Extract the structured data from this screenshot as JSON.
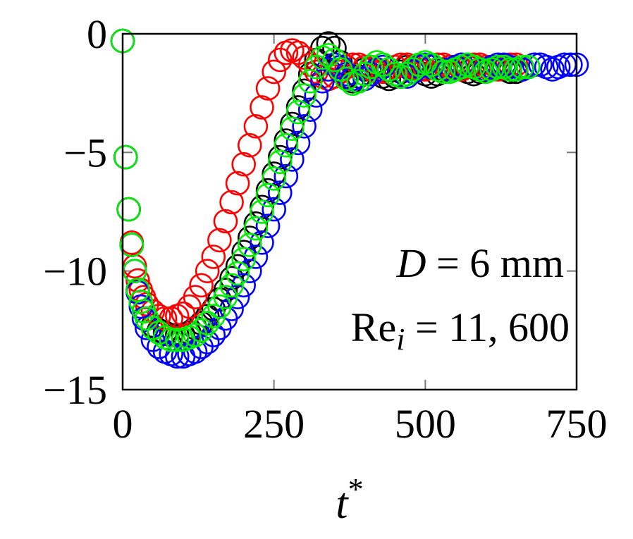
{
  "chart_data": {
    "type": "scatter",
    "title": "",
    "xlabel": "t*",
    "ylabel": "",
    "xlim": [
      0,
      750
    ],
    "ylim": [
      -15,
      0
    ],
    "xticks": [
      0,
      250,
      500,
      750
    ],
    "yticks": [
      0,
      -5,
      -10,
      -15
    ],
    "xtick_labels": [
      "0",
      "250",
      "500",
      "750"
    ],
    "ytick_labels": [
      "0",
      "−5",
      "−10",
      "−15"
    ],
    "grid": false,
    "marker": "open-circle",
    "annotation": {
      "line1": "D = 6 mm",
      "line2": "Re_i = 11, 600"
    },
    "series": [
      {
        "color": "#000000",
        "x": [
          0,
          5,
          10,
          15,
          20,
          25,
          30,
          35,
          40,
          50,
          60,
          70,
          80,
          90,
          100,
          110,
          120,
          130,
          140,
          150,
          160,
          170,
          180,
          190,
          200,
          210,
          220,
          230,
          240,
          250,
          260,
          270,
          280,
          290,
          300,
          310,
          320,
          330,
          340,
          350,
          360,
          370,
          380,
          390,
          400,
          410,
          420,
          430,
          440,
          450,
          460,
          470,
          480,
          490,
          500,
          510,
          520,
          530,
          540,
          550,
          560,
          570,
          580,
          590,
          600,
          610,
          620,
          630,
          640,
          650,
          660
        ],
        "y": [
          -0.3,
          -5.2,
          -7.4,
          -8.9,
          -10.0,
          -10.8,
          -11.3,
          -11.7,
          -12.0,
          -12.3,
          -12.5,
          -12.6,
          -12.7,
          -12.7,
          -12.7,
          -12.6,
          -12.4,
          -12.2,
          -11.9,
          -11.6,
          -11.2,
          -10.8,
          -10.3,
          -9.8,
          -9.2,
          -8.6,
          -8.0,
          -7.3,
          -6.6,
          -5.9,
          -5.2,
          -4.5,
          -3.8,
          -3.1,
          -2.4,
          -1.7,
          -1.1,
          -0.6,
          -0.4,
          -0.6,
          -1.2,
          -1.8,
          -2.0,
          -1.8,
          -1.5,
          -1.4,
          -1.6,
          -1.8,
          -1.9,
          -1.8,
          -1.6,
          -1.4,
          -1.4,
          -1.5,
          -1.7,
          -1.8,
          -1.7,
          -1.5,
          -1.4,
          -1.4,
          -1.5,
          -1.6,
          -1.7,
          -1.6,
          -1.5,
          -1.4,
          -1.4,
          -1.5,
          -1.6,
          -1.6,
          -1.5
        ]
      },
      {
        "color": "#ff0000",
        "x": [
          0,
          5,
          10,
          15,
          20,
          25,
          30,
          35,
          40,
          50,
          60,
          70,
          80,
          90,
          100,
          110,
          120,
          130,
          140,
          150,
          160,
          170,
          180,
          190,
          200,
          210,
          220,
          230,
          240,
          250,
          260,
          270,
          280,
          290,
          300,
          310,
          320,
          330,
          340,
          350,
          360,
          370,
          380,
          390,
          400,
          410,
          420,
          430,
          440,
          450,
          460,
          470,
          480,
          490,
          500,
          510,
          520,
          530,
          540,
          550,
          560,
          570,
          580,
          590,
          600,
          610,
          620,
          630,
          640,
          650
        ],
        "y": [
          -0.3,
          -5.2,
          -7.4,
          -8.8,
          -9.8,
          -10.4,
          -10.8,
          -11.1,
          -11.4,
          -11.7,
          -11.9,
          -12.0,
          -12.0,
          -11.9,
          -11.8,
          -11.5,
          -11.1,
          -10.6,
          -10.0,
          -9.4,
          -8.7,
          -7.9,
          -7.1,
          -6.3,
          -5.5,
          -4.7,
          -3.9,
          -3.1,
          -2.3,
          -1.6,
          -1.1,
          -0.8,
          -0.7,
          -0.8,
          -1.0,
          -1.3,
          -1.6,
          -1.8,
          -1.9,
          -1.8,
          -1.6,
          -1.4,
          -1.3,
          -1.3,
          -1.4,
          -1.5,
          -1.6,
          -1.6,
          -1.5,
          -1.4,
          -1.3,
          -1.3,
          -1.4,
          -1.5,
          -1.5,
          -1.4,
          -1.3,
          -1.3,
          -1.4,
          -1.5,
          -1.5,
          -1.4,
          -1.3,
          -1.3,
          -1.4,
          -1.5,
          -1.5,
          -1.4,
          -1.3,
          -1.3
        ]
      },
      {
        "color": "#0000ff",
        "x": [
          0,
          5,
          10,
          15,
          20,
          25,
          30,
          35,
          40,
          50,
          60,
          70,
          80,
          90,
          100,
          110,
          120,
          130,
          140,
          150,
          160,
          170,
          180,
          190,
          200,
          210,
          220,
          230,
          240,
          250,
          260,
          270,
          280,
          290,
          300,
          310,
          320,
          330,
          340,
          350,
          360,
          370,
          380,
          390,
          400,
          410,
          420,
          430,
          440,
          450,
          460,
          470,
          480,
          490,
          500,
          510,
          520,
          530,
          540,
          550,
          560,
          570,
          580,
          590,
          600,
          610,
          620,
          630,
          640,
          650,
          660,
          670,
          680,
          690,
          700,
          710,
          720,
          730,
          740,
          750
        ],
        "y": [
          -0.3,
          -5.2,
          -7.4,
          -8.9,
          -10.0,
          -10.9,
          -11.5,
          -12.0,
          -12.4,
          -12.9,
          -13.2,
          -13.4,
          -13.5,
          -13.6,
          -13.6,
          -13.5,
          -13.4,
          -13.2,
          -13.0,
          -12.7,
          -12.4,
          -12.0,
          -11.6,
          -11.1,
          -10.6,
          -10.0,
          -9.4,
          -8.8,
          -8.1,
          -7.4,
          -6.7,
          -6.0,
          -5.3,
          -4.6,
          -3.9,
          -3.2,
          -2.6,
          -2.0,
          -1.5,
          -1.3,
          -1.4,
          -1.7,
          -1.9,
          -2.0,
          -1.9,
          -1.7,
          -1.5,
          -1.4,
          -1.5,
          -1.7,
          -1.8,
          -1.8,
          -1.6,
          -1.4,
          -1.3,
          -1.4,
          -1.5,
          -1.6,
          -1.5,
          -1.4,
          -1.3,
          -1.3,
          -1.4,
          -1.5,
          -1.5,
          -1.4,
          -1.3,
          -1.3,
          -1.4,
          -1.5,
          -1.5,
          -1.4,
          -1.3,
          -1.3,
          -1.4,
          -1.5,
          -1.4,
          -1.3,
          -1.3,
          -1.3
        ]
      },
      {
        "color": "#00ee00",
        "x": [
          0,
          5,
          10,
          15,
          20,
          25,
          30,
          35,
          40,
          50,
          60,
          70,
          80,
          90,
          100,
          110,
          120,
          130,
          140,
          150,
          160,
          170,
          180,
          190,
          200,
          210,
          220,
          230,
          240,
          250,
          260,
          270,
          280,
          290,
          300,
          310,
          320,
          330,
          340,
          350,
          360,
          370,
          380,
          390,
          400,
          410,
          420,
          430,
          440,
          450,
          460,
          470,
          480,
          490,
          500,
          510,
          520,
          530,
          540,
          550,
          560,
          570,
          580,
          590,
          600,
          610,
          620,
          630,
          640,
          650,
          660,
          670
        ],
        "y": [
          -0.3,
          -5.2,
          -7.4,
          -8.9,
          -10.0,
          -10.8,
          -11.3,
          -11.7,
          -12.0,
          -12.4,
          -12.6,
          -12.8,
          -12.9,
          -12.9,
          -12.9,
          -12.8,
          -12.7,
          -12.5,
          -12.2,
          -11.9,
          -11.5,
          -11.1,
          -10.6,
          -10.1,
          -9.5,
          -8.9,
          -8.2,
          -7.5,
          -6.8,
          -6.1,
          -5.4,
          -4.7,
          -4.0,
          -3.3,
          -2.6,
          -2.0,
          -1.4,
          -1.0,
          -0.9,
          -1.1,
          -1.5,
          -1.9,
          -2.1,
          -2.0,
          -1.7,
          -1.4,
          -1.2,
          -1.3,
          -1.5,
          -1.7,
          -1.8,
          -1.7,
          -1.5,
          -1.3,
          -1.2,
          -1.3,
          -1.5,
          -1.6,
          -1.6,
          -1.5,
          -1.4,
          -1.3,
          -1.4,
          -1.5,
          -1.6,
          -1.5,
          -1.4,
          -1.4,
          -1.5,
          -1.5,
          -1.4,
          -1.4
        ]
      }
    ]
  }
}
